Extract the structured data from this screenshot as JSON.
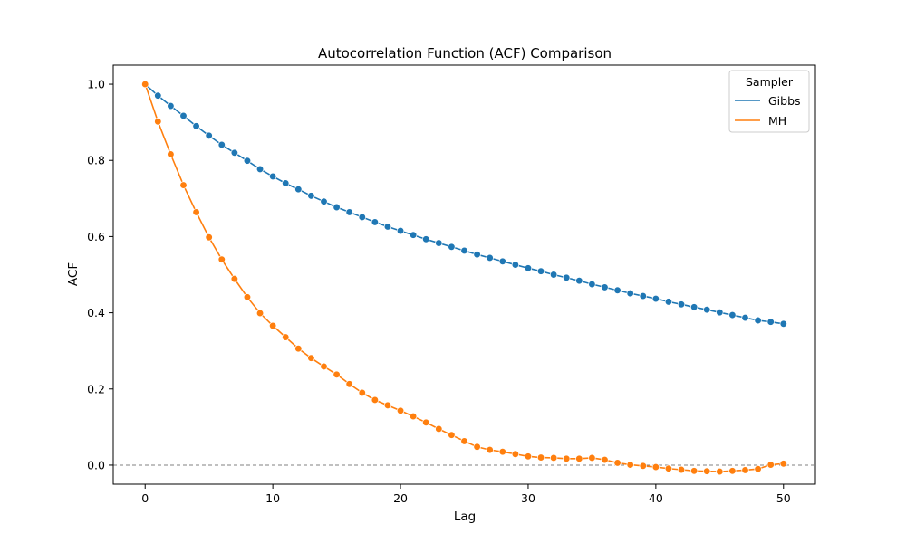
{
  "chart_data": {
    "type": "line",
    "title": "Autocorrelation Function (ACF) Comparison",
    "xlabel": "Lag",
    "ylabel": "ACF",
    "xlim": [
      -2.5,
      52.5
    ],
    "ylim": [
      -0.05,
      1.05
    ],
    "xticks": [
      0,
      10,
      20,
      30,
      40,
      50
    ],
    "yticks": [
      0.0,
      0.2,
      0.4,
      0.6,
      0.8,
      1.0
    ],
    "xtick_labels": [
      "0",
      "10",
      "20",
      "30",
      "40",
      "50"
    ],
    "ytick_labels": [
      "0.0",
      "0.2",
      "0.4",
      "0.6",
      "0.8",
      "1.0"
    ],
    "grid": false,
    "reference_line": {
      "y": 0.0,
      "style": "dashed",
      "color": "#808080"
    },
    "legend": {
      "title": "Sampler",
      "location": "top-right"
    },
    "x": [
      0,
      1,
      2,
      3,
      4,
      5,
      6,
      7,
      8,
      9,
      10,
      11,
      12,
      13,
      14,
      15,
      16,
      17,
      18,
      19,
      20,
      21,
      22,
      23,
      24,
      25,
      26,
      27,
      28,
      29,
      30,
      31,
      32,
      33,
      34,
      35,
      36,
      37,
      38,
      39,
      40,
      41,
      42,
      43,
      44,
      45,
      46,
      47,
      48,
      49,
      50
    ],
    "series": [
      {
        "name": "Gibbs",
        "color": "#1f77b4",
        "values": [
          1.0,
          0.97,
          0.943,
          0.917,
          0.89,
          0.865,
          0.841,
          0.82,
          0.799,
          0.777,
          0.758,
          0.74,
          0.724,
          0.707,
          0.692,
          0.677,
          0.664,
          0.651,
          0.638,
          0.626,
          0.615,
          0.604,
          0.593,
          0.583,
          0.573,
          0.563,
          0.553,
          0.544,
          0.535,
          0.526,
          0.517,
          0.509,
          0.5,
          0.492,
          0.484,
          0.475,
          0.467,
          0.459,
          0.451,
          0.444,
          0.437,
          0.429,
          0.422,
          0.415,
          0.408,
          0.401,
          0.394,
          0.387,
          0.38,
          0.376,
          0.371
        ]
      },
      {
        "name": "MH",
        "color": "#ff7f0e",
        "values": [
          1.0,
          0.902,
          0.816,
          0.735,
          0.664,
          0.598,
          0.54,
          0.489,
          0.441,
          0.399,
          0.366,
          0.336,
          0.306,
          0.281,
          0.259,
          0.238,
          0.213,
          0.19,
          0.171,
          0.157,
          0.143,
          0.128,
          0.112,
          0.095,
          0.079,
          0.063,
          0.048,
          0.04,
          0.035,
          0.029,
          0.023,
          0.02,
          0.019,
          0.017,
          0.017,
          0.019,
          0.014,
          0.006,
          0.001,
          -0.002,
          -0.005,
          -0.009,
          -0.012,
          -0.015,
          -0.016,
          -0.017,
          -0.015,
          -0.013,
          -0.01,
          0.001,
          0.004
        ]
      }
    ]
  }
}
